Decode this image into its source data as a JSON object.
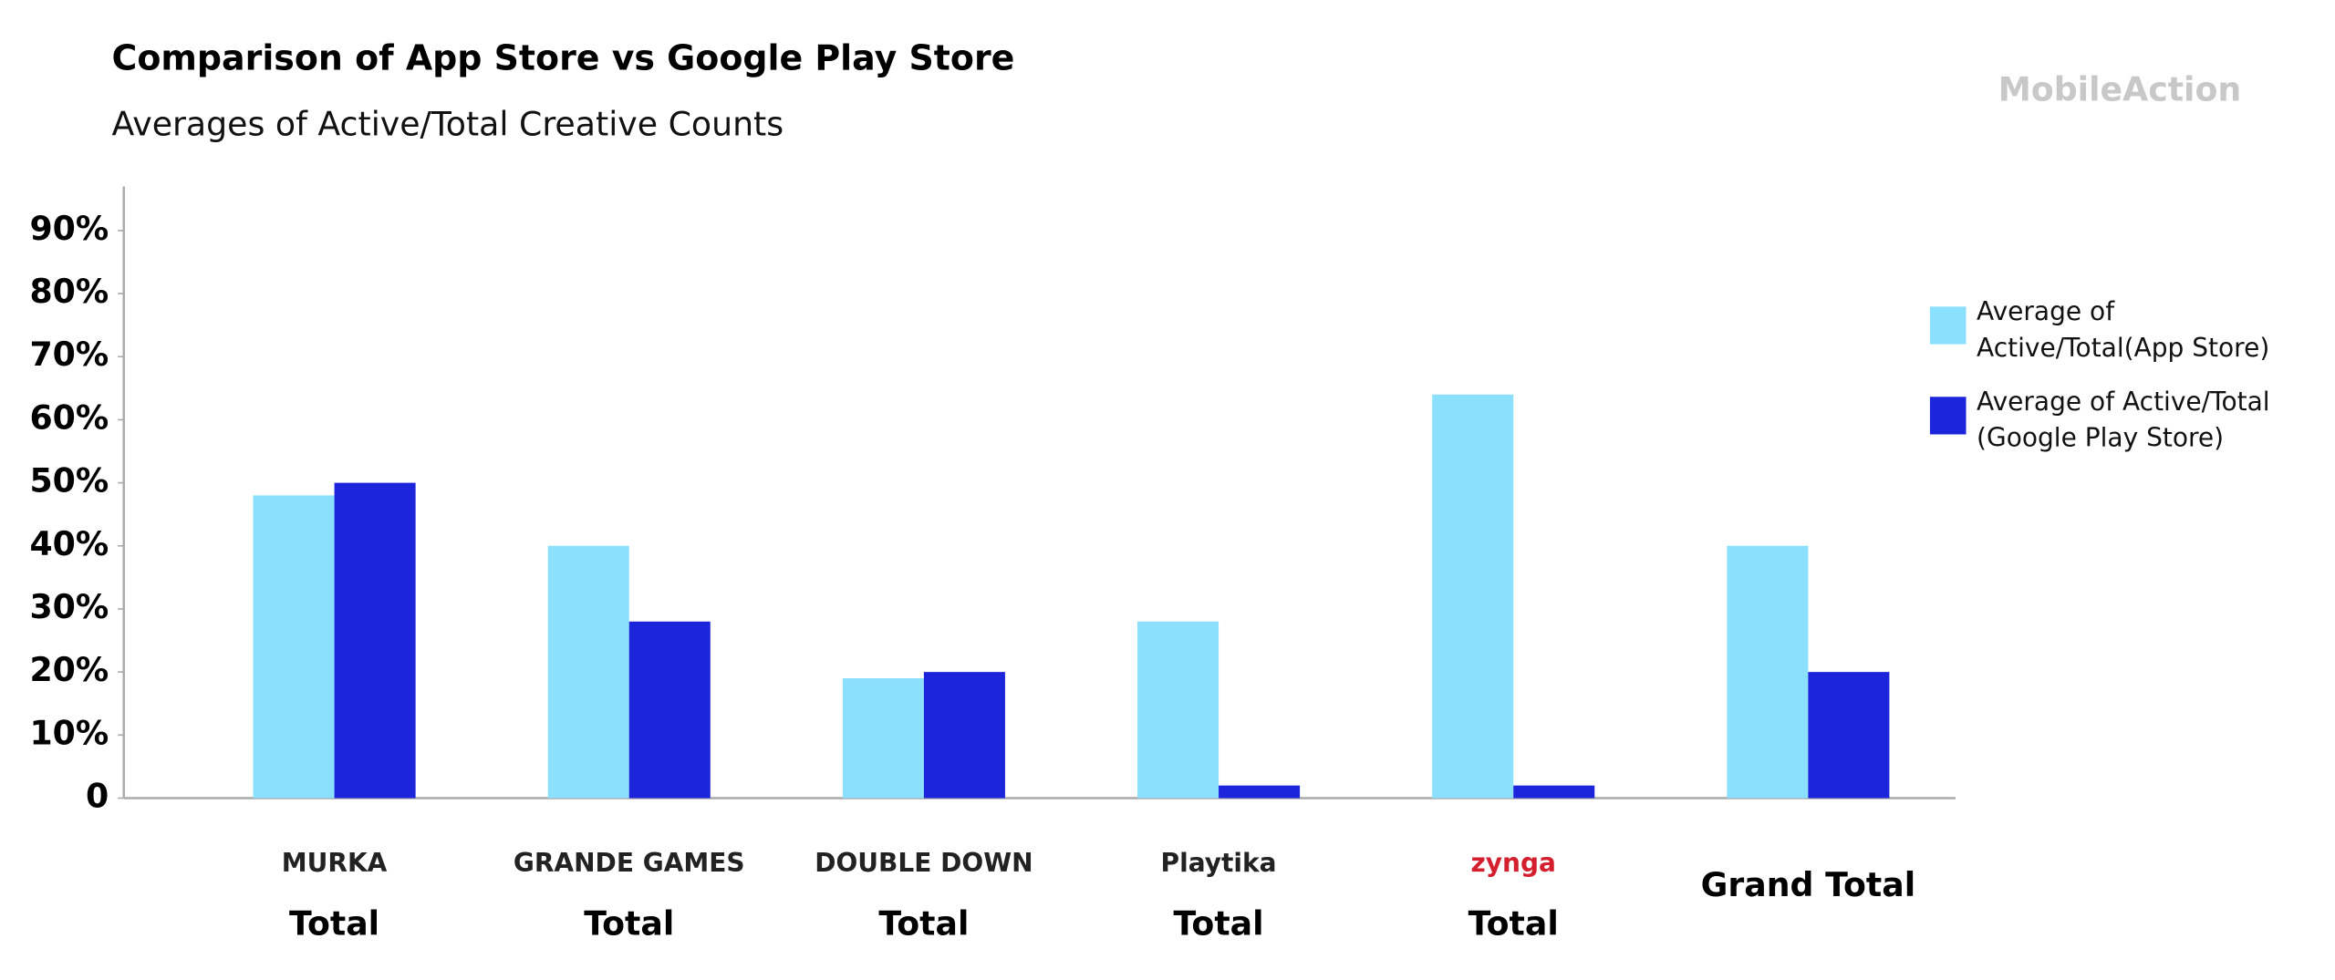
{
  "chart_data": {
    "type": "bar",
    "title": "Comparison of App Store vs Google Play Store",
    "subtitle": "Averages of Active/Total Creative Counts",
    "watermark": "MobileAction",
    "categories": [
      "Total",
      "Total",
      "Total",
      "Total",
      "Total",
      "Grand Total"
    ],
    "category_logos": [
      "MURKA",
      "GRANDE GAMES",
      "DOUBLE DOWN",
      "Playtika",
      "zynga",
      null
    ],
    "series": [
      {
        "name": "Average of Active/Total(App Store)",
        "color": "#8ae0fd",
        "values": [
          48,
          40,
          19,
          28,
          64,
          40
        ]
      },
      {
        "name": "Average of Active/Total (Google Play Store)",
        "color": "#1c24dc",
        "values": [
          50,
          28,
          20,
          2,
          2,
          20
        ]
      }
    ],
    "ylim": [
      0,
      97
    ],
    "yticks": [
      0,
      {
        "value": 10,
        "label": "10%"
      },
      {
        "value": 20,
        "label": "20%"
      },
      {
        "value": 30,
        "label": "30%"
      },
      {
        "value": 40,
        "label": "40%"
      },
      {
        "value": 50,
        "label": "50%"
      },
      {
        "value": 60,
        "label": "60%"
      },
      {
        "value": 70,
        "label": "70%"
      },
      {
        "value": 80,
        "label": "80%"
      },
      {
        "value": 90,
        "label": "90%"
      }
    ],
    "grid": false,
    "legend": "right"
  }
}
